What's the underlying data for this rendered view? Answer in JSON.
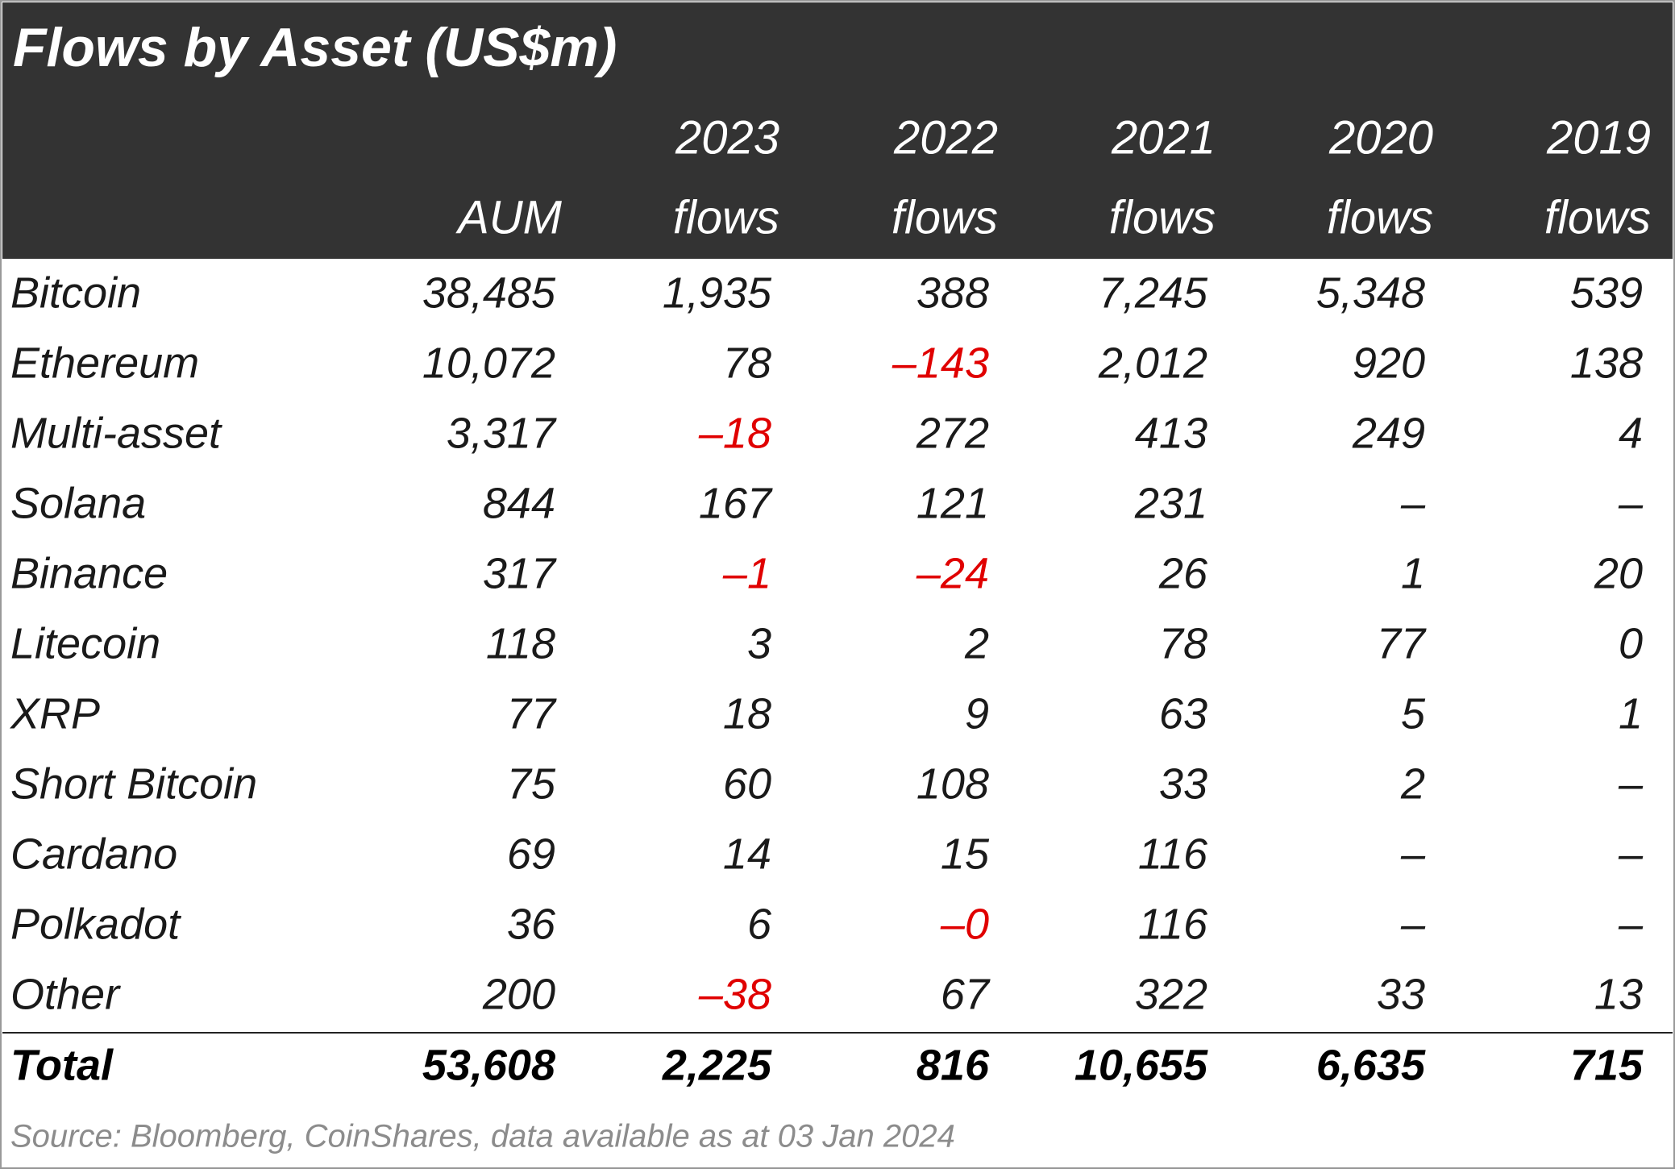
{
  "title": "Flows by Asset (US$m)",
  "header": [
    [
      "AUM"
    ],
    [
      "2023",
      "flows"
    ],
    [
      "2022",
      "flows"
    ],
    [
      "2021",
      "flows"
    ],
    [
      "2020",
      "flows"
    ],
    [
      "2019",
      "flows"
    ]
  ],
  "rows": [
    [
      "Bitcoin",
      "38,485",
      "1,935",
      "388",
      "7,245",
      "5,348",
      "539"
    ],
    [
      "Ethereum",
      "10,072",
      "78",
      "–143",
      "2,012",
      "920",
      "138"
    ],
    [
      "Multi-asset",
      "3,317",
      "–18",
      "272",
      "413",
      "249",
      "4"
    ],
    [
      "Solana",
      "844",
      "167",
      "121",
      "231",
      "–",
      "–"
    ],
    [
      "Binance",
      "317",
      "–1",
      "–24",
      "26",
      "1",
      "20"
    ],
    [
      "Litecoin",
      "118",
      "3",
      "2",
      "78",
      "77",
      "0"
    ],
    [
      "XRP",
      "77",
      "18",
      "9",
      "63",
      "5",
      "1"
    ],
    [
      "Short Bitcoin",
      "75",
      "60",
      "108",
      "33",
      "2",
      "–"
    ],
    [
      "Cardano",
      "69",
      "14",
      "15",
      "116",
      "–",
      "–"
    ],
    [
      "Polkadot",
      "36",
      "6",
      "–0",
      "116",
      "–",
      "–"
    ],
    [
      "Other",
      "200",
      "–38",
      "67",
      "322",
      "33",
      "13"
    ]
  ],
  "total": [
    "Total",
    "53,608",
    "2,225",
    "816",
    "10,655",
    "6,635",
    "715"
  ],
  "source": "Source: Bloomberg, CoinShares, data available as at 03 Jan 2024"
}
